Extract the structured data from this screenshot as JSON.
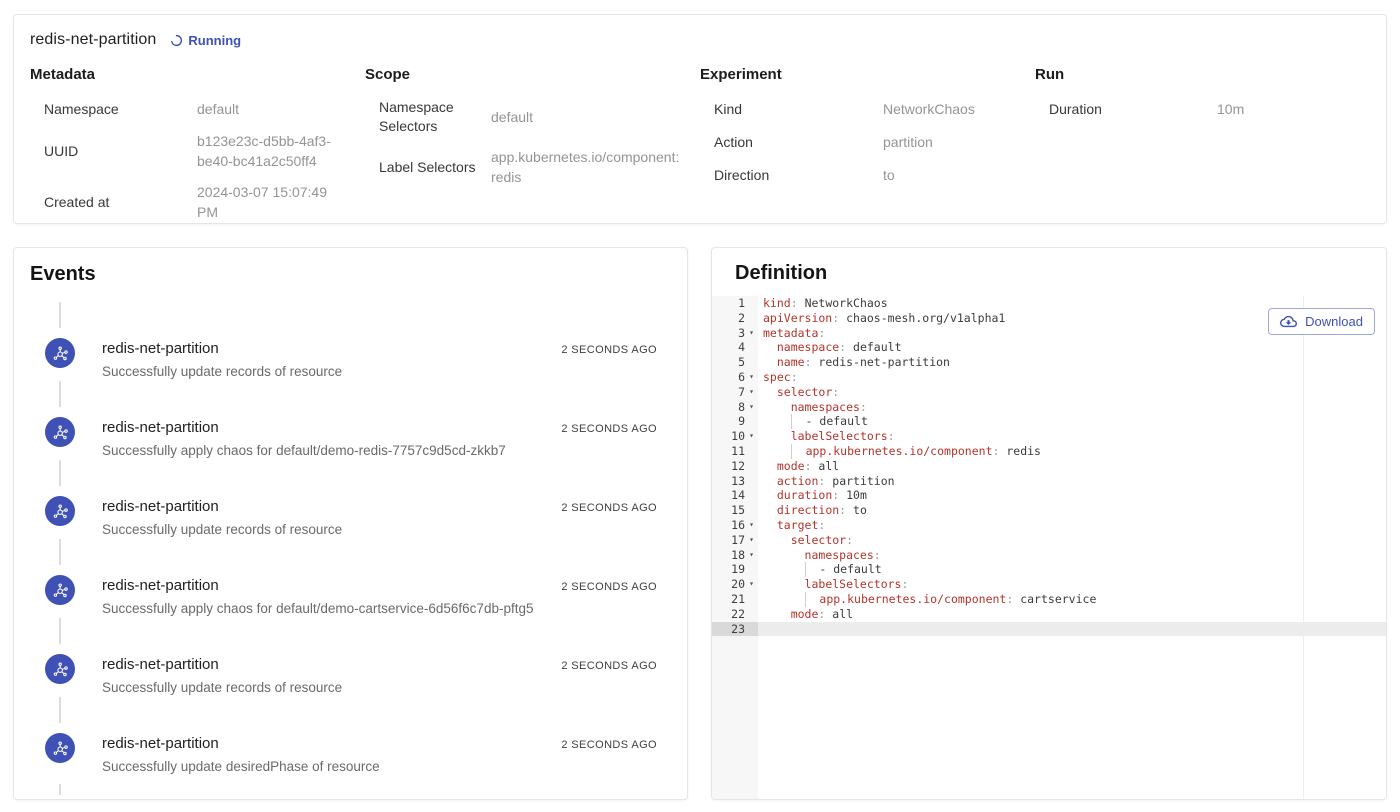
{
  "colors": {
    "accent": "#3f51b5",
    "yaml_key": "#b5342b",
    "avatar": "#3f51b5"
  },
  "header": {
    "title": "redis-net-partition",
    "status": "Running"
  },
  "overview": {
    "sections": [
      {
        "heading": "Metadata",
        "rows": [
          {
            "label": "Namespace",
            "value": "default"
          },
          {
            "label": "UUID",
            "value": "b123e23c-d5bb-4af3-be40-bc41a2c50ff4"
          },
          {
            "label": "Created at",
            "value": "2024-03-07 15:07:49 PM"
          }
        ]
      },
      {
        "heading": "Scope",
        "rows": [
          {
            "label": "Namespace Selectors",
            "value": "default"
          },
          {
            "label": "Label Selectors",
            "value": "app.kubernetes.io/component: redis"
          }
        ]
      },
      {
        "heading": "Experiment",
        "rows": [
          {
            "label": "Kind",
            "value": "NetworkChaos"
          },
          {
            "label": "Action",
            "value": "partition"
          },
          {
            "label": "Direction",
            "value": "to"
          }
        ]
      },
      {
        "heading": "Run",
        "rows": [
          {
            "label": "Duration",
            "value": "10m"
          }
        ]
      }
    ]
  },
  "events": {
    "heading": "Events",
    "items": [
      {
        "title": "redis-net-partition",
        "message": "Successfully update records of resource",
        "time": "2 SECONDS AGO"
      },
      {
        "title": "redis-net-partition",
        "message": "Successfully apply chaos for default/demo-redis-7757c9d5cd-zkkb7",
        "time": "2 SECONDS AGO"
      },
      {
        "title": "redis-net-partition",
        "message": "Successfully update records of resource",
        "time": "2 SECONDS AGO"
      },
      {
        "title": "redis-net-partition",
        "message": "Successfully apply chaos for default/demo-cartservice-6d56f6c7db-pftg5",
        "time": "2 SECONDS AGO"
      },
      {
        "title": "redis-net-partition",
        "message": "Successfully update records of resource",
        "time": "2 SECONDS AGO"
      },
      {
        "title": "redis-net-partition",
        "message": "Successfully update desiredPhase of resource",
        "time": "2 SECONDS AGO"
      }
    ]
  },
  "definition": {
    "heading": "Definition",
    "download_label": "Download",
    "icons": {
      "download": "cloud-download",
      "status": "spinner",
      "event": "experiment-molecule",
      "fold": "▾"
    },
    "code": {
      "lines": [
        {
          "n": 1,
          "f": 0,
          "s": [
            [
              "k",
              "kind"
            ],
            [
              "p",
              ":"
            ],
            [
              "v",
              " NetworkChaos"
            ]
          ]
        },
        {
          "n": 2,
          "f": 0,
          "s": [
            [
              "k",
              "apiVersion"
            ],
            [
              "p",
              ":"
            ],
            [
              "v",
              " chaos-mesh.org/v1alpha1"
            ]
          ]
        },
        {
          "n": 3,
          "f": 1,
          "s": [
            [
              "k",
              "metadata"
            ],
            [
              "p",
              ":"
            ]
          ]
        },
        {
          "n": 4,
          "f": 0,
          "s": [
            [
              "v",
              "  "
            ],
            [
              "k",
              "namespace"
            ],
            [
              "p",
              ":"
            ],
            [
              "v",
              " default"
            ]
          ]
        },
        {
          "n": 5,
          "f": 0,
          "s": [
            [
              "v",
              "  "
            ],
            [
              "k",
              "name"
            ],
            [
              "p",
              ":"
            ],
            [
              "v",
              " redis-net-partition"
            ]
          ]
        },
        {
          "n": 6,
          "f": 1,
          "s": [
            [
              "k",
              "spec"
            ],
            [
              "p",
              ":"
            ]
          ]
        },
        {
          "n": 7,
          "f": 1,
          "s": [
            [
              "v",
              "  "
            ],
            [
              "k",
              "selector"
            ],
            [
              "p",
              ":"
            ]
          ]
        },
        {
          "n": 8,
          "f": 1,
          "s": [
            [
              "v",
              "    "
            ],
            [
              "k",
              "namespaces"
            ],
            [
              "p",
              ":"
            ]
          ]
        },
        {
          "n": 9,
          "f": 0,
          "s": [
            [
              "v",
              "    "
            ],
            [
              "g",
              ""
            ],
            [
              "v",
              "  - default"
            ]
          ]
        },
        {
          "n": 10,
          "f": 1,
          "s": [
            [
              "v",
              "    "
            ],
            [
              "k",
              "labelSelectors"
            ],
            [
              "p",
              ":"
            ]
          ]
        },
        {
          "n": 11,
          "f": 0,
          "s": [
            [
              "v",
              "    "
            ],
            [
              "g",
              ""
            ],
            [
              "v",
              "  "
            ],
            [
              "k",
              "app.kubernetes.io/component"
            ],
            [
              "p",
              ":"
            ],
            [
              "v",
              " redis"
            ]
          ]
        },
        {
          "n": 12,
          "f": 0,
          "s": [
            [
              "v",
              "  "
            ],
            [
              "k",
              "mode"
            ],
            [
              "p",
              ":"
            ],
            [
              "v",
              " all"
            ]
          ]
        },
        {
          "n": 13,
          "f": 0,
          "s": [
            [
              "v",
              "  "
            ],
            [
              "k",
              "action"
            ],
            [
              "p",
              ":"
            ],
            [
              "v",
              " partition"
            ]
          ]
        },
        {
          "n": 14,
          "f": 0,
          "s": [
            [
              "v",
              "  "
            ],
            [
              "k",
              "duration"
            ],
            [
              "p",
              ":"
            ],
            [
              "v",
              " 10m"
            ]
          ]
        },
        {
          "n": 15,
          "f": 0,
          "s": [
            [
              "v",
              "  "
            ],
            [
              "k",
              "direction"
            ],
            [
              "p",
              ":"
            ],
            [
              "v",
              " to"
            ]
          ]
        },
        {
          "n": 16,
          "f": 1,
          "s": [
            [
              "v",
              "  "
            ],
            [
              "k",
              "target"
            ],
            [
              "p",
              ":"
            ]
          ]
        },
        {
          "n": 17,
          "f": 1,
          "s": [
            [
              "v",
              "    "
            ],
            [
              "k",
              "selector"
            ],
            [
              "p",
              ":"
            ]
          ]
        },
        {
          "n": 18,
          "f": 1,
          "s": [
            [
              "v",
              "      "
            ],
            [
              "k",
              "namespaces"
            ],
            [
              "p",
              ":"
            ]
          ]
        },
        {
          "n": 19,
          "f": 0,
          "s": [
            [
              "v",
              "      "
            ],
            [
              "g",
              ""
            ],
            [
              "v",
              "  - default"
            ]
          ]
        },
        {
          "n": 20,
          "f": 1,
          "s": [
            [
              "v",
              "      "
            ],
            [
              "k",
              "labelSelectors"
            ],
            [
              "p",
              ":"
            ]
          ]
        },
        {
          "n": 21,
          "f": 0,
          "s": [
            [
              "v",
              "      "
            ],
            [
              "g",
              ""
            ],
            [
              "v",
              "  "
            ],
            [
              "k",
              "app.kubernetes.io/component"
            ],
            [
              "p",
              ":"
            ],
            [
              "v",
              " cartservice"
            ]
          ]
        },
        {
          "n": 22,
          "f": 0,
          "s": [
            [
              "v",
              "    "
            ],
            [
              "k",
              "mode"
            ],
            [
              "p",
              ":"
            ],
            [
              "v",
              " all"
            ]
          ]
        },
        {
          "n": 23,
          "f": 0,
          "a": 1,
          "s": []
        }
      ]
    }
  }
}
